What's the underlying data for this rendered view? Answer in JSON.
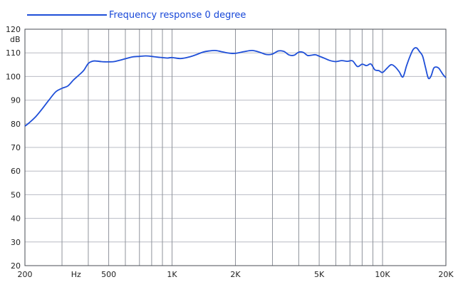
{
  "chart_data": {
    "type": "line",
    "legend": {
      "label": "Frequency response 0 degree",
      "color": "#1f4fd8",
      "position": "top-left"
    },
    "y_unit": "dB",
    "ylim": [
      20,
      120
    ],
    "y_ticks": [
      20,
      30,
      40,
      50,
      60,
      70,
      80,
      90,
      100,
      110,
      120
    ],
    "x_scale": "log",
    "xlim": [
      200,
      20000
    ],
    "x_tick_labels": [
      {
        "value": 200,
        "label": "200"
      },
      {
        "value": 350,
        "label": "Hz"
      },
      {
        "value": 500,
        "label": "500"
      },
      {
        "value": 1000,
        "label": "1K"
      },
      {
        "value": 2000,
        "label": "2K"
      },
      {
        "value": 5000,
        "label": "5K"
      },
      {
        "value": 10000,
        "label": "10K"
      },
      {
        "value": 20000,
        "label": "20K"
      }
    ],
    "x_gridlines": [
      200,
      300,
      400,
      500,
      600,
      700,
      800,
      900,
      1000,
      2000,
      3000,
      4000,
      5000,
      6000,
      7000,
      8000,
      9000,
      10000,
      20000
    ],
    "grid": true,
    "line_color": "#1f4fd8",
    "series": [
      {
        "name": "Frequency response 0 degree",
        "x": [
          200,
          210,
          225,
          240,
          260,
          280,
          300,
          320,
          340,
          360,
          380,
          400,
          420,
          440,
          460,
          480,
          500,
          530,
          560,
          600,
          650,
          700,
          750,
          800,
          850,
          900,
          950,
          1000,
          1100,
          1200,
          1300,
          1400,
          1500,
          1600,
          1700,
          1800,
          1900,
          2000,
          2200,
          2400,
          2600,
          2800,
          3000,
          3200,
          3400,
          3600,
          3800,
          4000,
          4200,
          4400,
          4600,
          4800,
          5000,
          5300,
          5600,
          6000,
          6400,
          6800,
          7200,
          7600,
          8000,
          8400,
          8800,
          9200,
          9600,
          10000,
          10500,
          11000,
          11500,
          12000,
          12500,
          13000,
          13500,
          14000,
          14500,
          15000,
          15500,
          16000,
          16500,
          17000,
          17500,
          18000,
          18500,
          19000,
          19500,
          20000
        ],
        "y": [
          79,
          80.5,
          83,
          86,
          90,
          93.5,
          95,
          96,
          98.5,
          100.5,
          102.5,
          105.5,
          106.5,
          106.5,
          106.3,
          106.2,
          106.2,
          106.3,
          106.8,
          107.5,
          108.3,
          108.5,
          108.7,
          108.5,
          108.2,
          108,
          107.8,
          108,
          107.6,
          108.2,
          109.2,
          110.3,
          110.8,
          111,
          110.6,
          110.1,
          109.8,
          109.8,
          110.5,
          111,
          110.3,
          109.3,
          109.5,
          110.8,
          110.6,
          109.1,
          109,
          110.3,
          110.2,
          108.9,
          109,
          109.2,
          108.6,
          107.7,
          106.8,
          106.3,
          106.7,
          106.4,
          106.6,
          104.2,
          105.2,
          104.6,
          105.3,
          102.8,
          102.5,
          101.7,
          103.5,
          105,
          104,
          102,
          99.8,
          104.5,
          108.5,
          111.5,
          112.1,
          110.5,
          108.6,
          103.8,
          99.3,
          100.2,
          103.5,
          104,
          103.5,
          102,
          100.5,
          99.5
        ]
      }
    ]
  }
}
